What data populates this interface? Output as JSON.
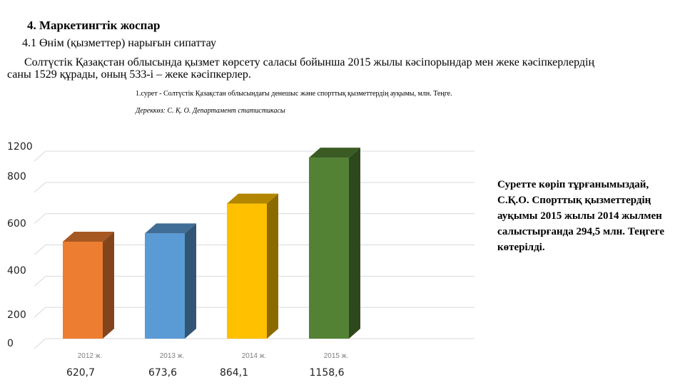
{
  "heading": "4. Маркетингтік жоспар",
  "subheading": "4.1 Өнім (қызметтер) нарығын сипаттау",
  "paragraph": "Солтүстік Қазақстан облысында қызмет көрсету саласы бойынша 2015 жылы кәсіпорындар мен жеке кәсіпкерлердің саны 1529 құрады, оның 533-і – жеке кәсіпкерлер.",
  "figure_caption": "1.сурет - Солтүстік Қазақстан облысындағы денешыс және спорттық қызметтердің ауқымы, млн. Теңге.",
  "figure_source": "Дереккөз: С. Қ. О. Департамент статистикасы",
  "note": "Суретте көріп тұрғанымыздай, С.Қ.О. Спорттық қызметтердің ауқымы 2015 жылы 2014 жылмен салыстырғанда 294,5 млн. Теңгеге көтерілді.",
  "chart_data": {
    "type": "bar",
    "style": "3d-columns",
    "categories": [
      "2012 ж.",
      "2013 ж.",
      "2014 ж.",
      "2015 ж."
    ],
    "values": [
      620.7,
      673.6,
      864.1,
      1158.6
    ],
    "value_labels": [
      "620,7",
      "673,6",
      "864,1",
      "1158,6"
    ],
    "bar_colors": [
      "#ED7D31",
      "#5B9BD5",
      "#FFC000",
      "#548235"
    ],
    "y_ticks": [
      "0",
      "200",
      "400",
      "600",
      "800",
      "1200"
    ],
    "ylim": [
      0,
      1200
    ],
    "grid": true,
    "legend": "none"
  }
}
